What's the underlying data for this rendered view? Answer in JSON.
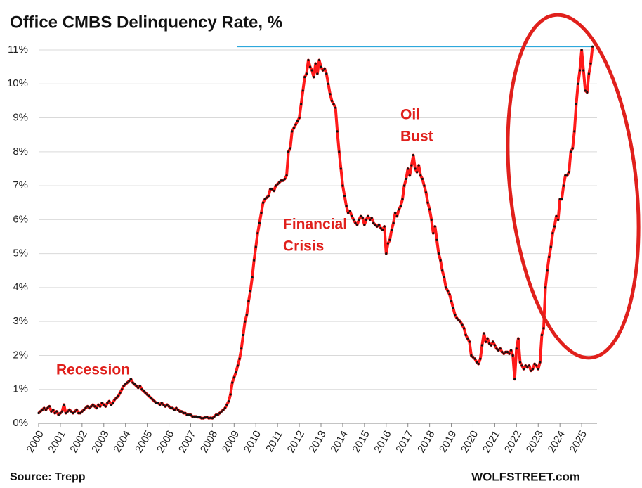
{
  "chart_data": {
    "type": "line",
    "title": "Office CMBS Delinquency Rate, %",
    "source": "Source: Trepp",
    "credit": "WOLFSTREET.com",
    "annotations": [
      [
        "Recession"
      ],
      [
        "Financial",
        "Crisis"
      ],
      [
        "Oil",
        "Bust"
      ]
    ],
    "categories": [
      "2000",
      null,
      null,
      null,
      null,
      null,
      null,
      null,
      null,
      null,
      null,
      null,
      "2001",
      null,
      null,
      null,
      null,
      null,
      null,
      null,
      null,
      null,
      null,
      null,
      "2002",
      null,
      null,
      null,
      null,
      null,
      null,
      null,
      null,
      null,
      null,
      null,
      "2003",
      null,
      null,
      null,
      null,
      null,
      null,
      null,
      null,
      null,
      null,
      null,
      "2004",
      null,
      null,
      null,
      null,
      null,
      null,
      null,
      null,
      null,
      null,
      null,
      "2005",
      null,
      null,
      null,
      null,
      null,
      null,
      null,
      null,
      null,
      null,
      null,
      "2006",
      null,
      null,
      null,
      null,
      null,
      null,
      null,
      null,
      null,
      null,
      null,
      "2007",
      null,
      null,
      null,
      null,
      null,
      null,
      null,
      null,
      null,
      null,
      null,
      "2008",
      null,
      null,
      null,
      null,
      null,
      null,
      null,
      null,
      null,
      null,
      null,
      "2009",
      null,
      null,
      null,
      null,
      null,
      null,
      null,
      null,
      null,
      null,
      null,
      "2010",
      null,
      null,
      null,
      null,
      null,
      null,
      null,
      null,
      null,
      null,
      null,
      "2011",
      null,
      null,
      null,
      null,
      null,
      null,
      null,
      null,
      null,
      null,
      null,
      "2012",
      null,
      null,
      null,
      null,
      null,
      null,
      null,
      null,
      null,
      null,
      null,
      "2013",
      null,
      null,
      null,
      null,
      null,
      null,
      null,
      null,
      null,
      null,
      null,
      "2014",
      null,
      null,
      null,
      null,
      null,
      null,
      null,
      null,
      null,
      null,
      null,
      "2015",
      null,
      null,
      null,
      null,
      null,
      null,
      null,
      null,
      null,
      null,
      null,
      "2016",
      null,
      null,
      null,
      null,
      null,
      null,
      null,
      null,
      null,
      null,
      null,
      "2017",
      null,
      null,
      null,
      null,
      null,
      null,
      null,
      null,
      null,
      null,
      null,
      "2018",
      null,
      null,
      null,
      null,
      null,
      null,
      null,
      null,
      null,
      null,
      null,
      "2019",
      null,
      null,
      null,
      null,
      null,
      null,
      null,
      null,
      null,
      null,
      null,
      "2020",
      null,
      null,
      null,
      null,
      null,
      null,
      null,
      null,
      null,
      null,
      null,
      "2021",
      null,
      null,
      null,
      null,
      null,
      null,
      null,
      null,
      null,
      null,
      null,
      "2022",
      null,
      null,
      null,
      null,
      null,
      null,
      null,
      null,
      null,
      null,
      null,
      "2023",
      null,
      null,
      null,
      null,
      null,
      null,
      null,
      null,
      null,
      null,
      null,
      "2024",
      null,
      null,
      null,
      null,
      null,
      null,
      null,
      null,
      null,
      null,
      null,
      "2025",
      null,
      null,
      null,
      null,
      null,
      null
    ],
    "values": [
      0.3,
      0.35,
      0.4,
      0.45,
      0.4,
      0.45,
      0.5,
      0.35,
      0.4,
      0.3,
      0.35,
      0.25,
      0.3,
      0.35,
      0.55,
      0.3,
      0.35,
      0.4,
      0.35,
      0.3,
      0.35,
      0.4,
      0.3,
      0.3,
      0.35,
      0.4,
      0.45,
      0.5,
      0.45,
      0.5,
      0.55,
      0.5,
      0.45,
      0.55,
      0.5,
      0.6,
      0.55,
      0.5,
      0.6,
      0.65,
      0.55,
      0.6,
      0.7,
      0.75,
      0.8,
      0.9,
      1.0,
      1.1,
      1.15,
      1.2,
      1.25,
      1.3,
      1.2,
      1.15,
      1.1,
      1.05,
      1.1,
      1.0,
      0.95,
      0.9,
      0.85,
      0.8,
      0.75,
      0.7,
      0.65,
      0.6,
      0.6,
      0.55,
      0.6,
      0.55,
      0.5,
      0.55,
      0.5,
      0.45,
      0.45,
      0.4,
      0.45,
      0.4,
      0.35,
      0.35,
      0.3,
      0.3,
      0.25,
      0.25,
      0.25,
      0.2,
      0.2,
      0.2,
      0.18,
      0.18,
      0.15,
      0.15,
      0.17,
      0.18,
      0.15,
      0.16,
      0.15,
      0.2,
      0.25,
      0.25,
      0.3,
      0.35,
      0.4,
      0.45,
      0.55,
      0.65,
      0.85,
      1.2,
      1.35,
      1.5,
      1.7,
      1.9,
      2.2,
      2.6,
      3.0,
      3.2,
      3.6,
      3.9,
      4.3,
      4.8,
      5.2,
      5.6,
      5.9,
      6.2,
      6.5,
      6.6,
      6.65,
      6.7,
      6.9,
      6.9,
      6.85,
      7.0,
      7.05,
      7.1,
      7.15,
      7.15,
      7.2,
      7.3,
      8.0,
      8.1,
      8.6,
      8.7,
      8.8,
      8.9,
      9.0,
      9.4,
      9.8,
      10.2,
      10.3,
      10.7,
      10.5,
      10.4,
      10.2,
      10.6,
      10.3,
      10.7,
      10.5,
      10.4,
      10.45,
      10.3,
      10.0,
      9.7,
      9.5,
      9.4,
      9.3,
      8.6,
      8.0,
      7.5,
      7.0,
      6.7,
      6.4,
      6.2,
      6.25,
      6.1,
      6.0,
      5.9,
      5.85,
      6.0,
      6.1,
      6.05,
      5.85,
      6.0,
      6.1,
      6.0,
      6.05,
      5.9,
      5.85,
      5.8,
      5.85,
      5.75,
      5.7,
      5.8,
      5.0,
      5.3,
      5.4,
      5.7,
      5.9,
      6.2,
      6.1,
      6.3,
      6.4,
      6.6,
      7.0,
      7.2,
      7.5,
      7.3,
      7.6,
      7.9,
      7.5,
      7.4,
      7.6,
      7.3,
      7.2,
      7.0,
      6.8,
      6.5,
      6.3,
      6.0,
      5.6,
      5.8,
      5.4,
      5.0,
      4.8,
      4.5,
      4.3,
      4.0,
      3.9,
      3.8,
      3.6,
      3.4,
      3.2,
      3.1,
      3.05,
      3.0,
      2.9,
      2.8,
      2.6,
      2.5,
      2.4,
      2.0,
      1.95,
      1.9,
      1.8,
      1.75,
      1.9,
      2.3,
      2.65,
      2.4,
      2.5,
      2.35,
      2.3,
      2.4,
      2.3,
      2.2,
      2.15,
      2.2,
      2.1,
      2.05,
      2.1,
      2.1,
      2.05,
      2.15,
      2.0,
      1.3,
      2.2,
      2.5,
      1.8,
      1.7,
      1.6,
      1.7,
      1.65,
      1.7,
      1.55,
      1.6,
      1.75,
      1.7,
      1.6,
      1.8,
      2.6,
      2.8,
      4.0,
      4.5,
      4.9,
      5.2,
      5.6,
      5.8,
      6.1,
      6.0,
      6.6,
      6.6,
      7.0,
      7.3,
      7.3,
      7.4,
      8.0,
      8.1,
      8.6,
      9.4,
      10.0,
      10.4,
      11.0,
      10.4,
      9.8,
      9.75,
      10.3,
      10.6,
      11.1
    ],
    "color": "#ff1a1a",
    "marker_color": "#111111",
    "reference_color": "#2ea8dc",
    "highlight_color": "#e0201c",
    "ylim": [
      0,
      11
    ],
    "yticks": [
      {
        "value": 0,
        "label": "0%"
      },
      {
        "value": 1,
        "label": "1%"
      },
      {
        "value": 2,
        "label": "2%"
      },
      {
        "value": 3,
        "label": "3%"
      },
      {
        "value": 4,
        "label": "4%"
      },
      {
        "value": 5,
        "label": "5%"
      },
      {
        "value": 6,
        "label": "6%"
      },
      {
        "value": 7,
        "label": "7%"
      },
      {
        "value": 8,
        "label": "8%"
      },
      {
        "value": 9,
        "label": "9%"
      },
      {
        "value": 10,
        "label": "10%"
      },
      {
        "value": 11,
        "label": "11%"
      }
    ],
    "grid": true
  }
}
